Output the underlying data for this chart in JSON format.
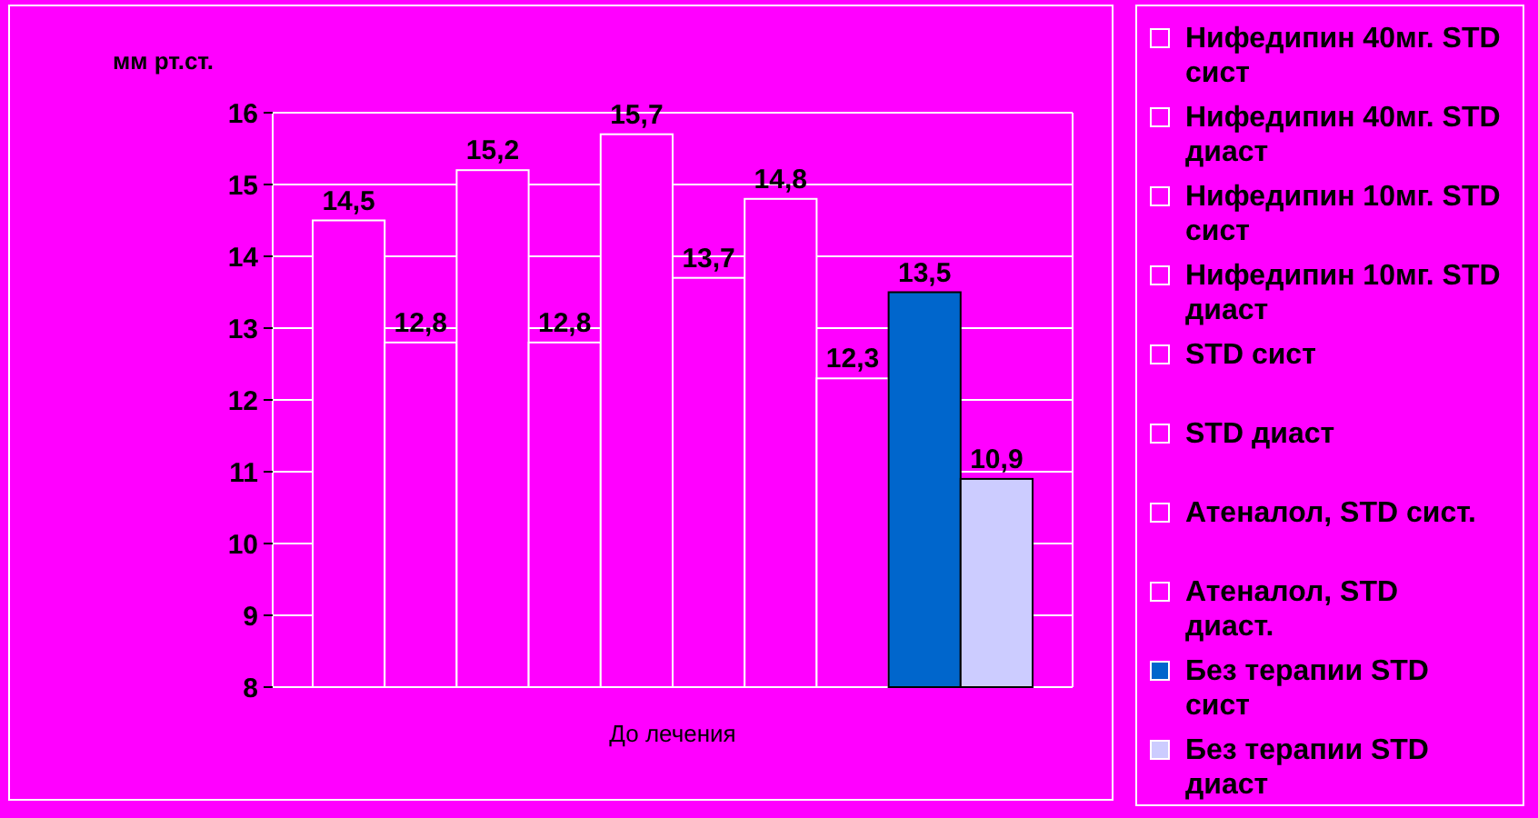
{
  "chart_data": {
    "type": "bar",
    "ylabel": "мм рт.ст.",
    "categories": [
      "До лечения"
    ],
    "ylim": [
      8,
      16
    ],
    "yticks": [
      8,
      9,
      10,
      11,
      12,
      13,
      14,
      15,
      16
    ],
    "grid": "y",
    "legend": "right",
    "series": [
      {
        "name": "Нифедипин 40мг. STD сист",
        "color": "#ff00ff",
        "values": [
          14.5
        ],
        "value_labels": [
          "14,5"
        ]
      },
      {
        "name": "Нифедипин 40мг. STD диаст",
        "color": "#ff00ff",
        "values": [
          12.8
        ],
        "value_labels": [
          "12,8"
        ]
      },
      {
        "name": "Нифедипин 10мг. STD сист",
        "color": "#ff00ff",
        "values": [
          15.2
        ],
        "value_labels": [
          "15,2"
        ]
      },
      {
        "name": "Нифедипин 10мг. STD диаст",
        "color": "#ff00ff",
        "values": [
          12.8
        ],
        "value_labels": [
          "12,8"
        ]
      },
      {
        "name": "STD сист",
        "color": "#ff00ff",
        "values": [
          15.7
        ],
        "value_labels": [
          "15,7"
        ]
      },
      {
        "name": "STD диаст",
        "color": "#ff00ff",
        "values": [
          13.7
        ],
        "value_labels": [
          "13,7"
        ]
      },
      {
        "name": "Атеналол, STD сист.",
        "color": "#ff00ff",
        "values": [
          14.8
        ],
        "value_labels": [
          "14,8"
        ]
      },
      {
        "name": "Атеналол, STD диаст.",
        "color": "#ff00ff",
        "values": [
          12.3
        ],
        "value_labels": [
          "12,3"
        ]
      },
      {
        "name": "Без терапии STD сист",
        "color": "#0066cc",
        "values": [
          13.5
        ],
        "value_labels": [
          "13,5"
        ]
      },
      {
        "name": "Без терапии STD диаст",
        "color": "#ccccff",
        "values": [
          10.9
        ],
        "value_labels": [
          "10,9"
        ]
      }
    ]
  }
}
